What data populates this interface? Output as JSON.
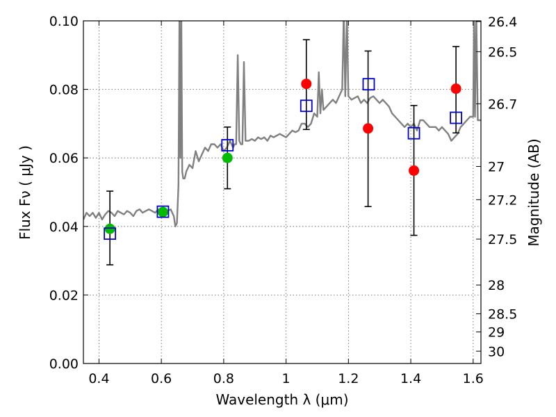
{
  "chart_data": {
    "type": "scatter",
    "xlabel": "Wavelength  λ (μm)",
    "ylabel": "Flux  Fν  ( μJy )",
    "ylabel_right": "Magnitude (AB)",
    "xlim": [
      0.35,
      1.625
    ],
    "ylim": [
      0.0,
      0.1
    ],
    "grid": true,
    "x_ticks": [
      0.4,
      0.6,
      0.8,
      1.0,
      1.2,
      1.4,
      1.6
    ],
    "x_tick_labels": [
      "0.4",
      "0.6",
      "0.8",
      "1",
      "1.2",
      "1.4",
      "1.6"
    ],
    "y_ticks": [
      0.0,
      0.02,
      0.04,
      0.06,
      0.08,
      0.1
    ],
    "y_tick_labels": [
      "0.00",
      "0.02",
      "0.04",
      "0.06",
      "0.08",
      "0.10"
    ],
    "right_ticks": [
      {
        "label": "26.4",
        "flux": 0.0998
      },
      {
        "label": "26.5",
        "flux": 0.091
      },
      {
        "label": "26.7",
        "flux": 0.0758
      },
      {
        "label": "27",
        "flux": 0.0575
      },
      {
        "label": "27.2",
        "flux": 0.0478
      },
      {
        "label": "27.5",
        "flux": 0.0363
      },
      {
        "label": "28",
        "flux": 0.0229
      },
      {
        "label": "28.5",
        "flux": 0.0145
      },
      {
        "label": "29",
        "flux": 0.0092
      },
      {
        "label": "30",
        "flux": 0.0036
      }
    ],
    "series": [
      {
        "marker": "open-square",
        "color": "#0000cc",
        "x": [
          0.435,
          0.605,
          0.812,
          1.065,
          1.265,
          1.41,
          1.545
        ],
        "y": [
          0.0379,
          0.0443,
          0.0637,
          0.0752,
          0.0815,
          0.0672,
          0.0717
        ]
      },
      {
        "marker": "filled-circle",
        "color": "#00bb00",
        "x": [
          0.435,
          0.605,
          0.812
        ],
        "y": [
          0.0393,
          0.0442,
          0.06
        ],
        "yerr_low": [
          0.0288,
          0.0442,
          0.051
        ],
        "yerr_high": [
          0.0503,
          0.0442,
          0.069
        ]
      },
      {
        "marker": "filled-circle",
        "color": "#ff0000",
        "x": [
          1.065,
          1.263,
          1.41,
          1.545
        ],
        "y": [
          0.0816,
          0.0686,
          0.0563,
          0.0802
        ],
        "yerr_low": [
          0.0683,
          0.0458,
          0.0374,
          0.0673
        ],
        "yerr_high": [
          0.0945,
          0.0912,
          0.0753,
          0.0925
        ]
      }
    ],
    "spectrum": {
      "color": "#808080",
      "x": [
        0.35,
        0.36,
        0.37,
        0.38,
        0.39,
        0.4,
        0.41,
        0.42,
        0.43,
        0.44,
        0.45,
        0.46,
        0.47,
        0.48,
        0.49,
        0.5,
        0.51,
        0.52,
        0.53,
        0.54,
        0.55,
        0.56,
        0.57,
        0.58,
        0.59,
        0.6,
        0.61,
        0.62,
        0.63,
        0.64,
        0.645,
        0.65,
        0.655,
        0.658,
        0.661,
        0.664,
        0.667,
        0.67,
        0.675,
        0.68,
        0.69,
        0.7,
        0.71,
        0.72,
        0.73,
        0.74,
        0.75,
        0.76,
        0.77,
        0.78,
        0.79,
        0.8,
        0.81,
        0.82,
        0.83,
        0.835,
        0.84,
        0.845,
        0.85,
        0.855,
        0.86,
        0.865,
        0.87,
        0.88,
        0.89,
        0.9,
        0.91,
        0.92,
        0.93,
        0.94,
        0.95,
        0.96,
        0.97,
        0.98,
        0.99,
        1.0,
        1.01,
        1.02,
        1.03,
        1.04,
        1.05,
        1.06,
        1.07,
        1.08,
        1.09,
        1.1,
        1.105,
        1.11,
        1.115,
        1.12,
        1.13,
        1.14,
        1.15,
        1.16,
        1.17,
        1.18,
        1.185,
        1.19,
        1.195,
        1.2,
        1.21,
        1.22,
        1.23,
        1.24,
        1.25,
        1.26,
        1.27,
        1.28,
        1.29,
        1.3,
        1.31,
        1.32,
        1.33,
        1.34,
        1.35,
        1.36,
        1.37,
        1.38,
        1.39,
        1.4,
        1.41,
        1.42,
        1.43,
        1.44,
        1.45,
        1.46,
        1.47,
        1.48,
        1.49,
        1.5,
        1.51,
        1.52,
        1.53,
        1.54,
        1.55,
        1.56,
        1.57,
        1.58,
        1.59,
        1.6,
        1.603,
        1.606,
        1.61,
        1.615,
        1.62,
        1.625
      ],
      "y": [
        0.042,
        0.044,
        0.043,
        0.044,
        0.0425,
        0.044,
        0.042,
        0.0435,
        0.0445,
        0.044,
        0.043,
        0.0445,
        0.044,
        0.0435,
        0.0445,
        0.044,
        0.043,
        0.0445,
        0.045,
        0.044,
        0.0445,
        0.045,
        0.0445,
        0.044,
        0.045,
        0.0445,
        0.044,
        0.0445,
        0.045,
        0.043,
        0.04,
        0.041,
        0.052,
        0.102,
        0.06,
        0.102,
        0.056,
        0.054,
        0.054,
        0.056,
        0.058,
        0.057,
        0.062,
        0.059,
        0.061,
        0.063,
        0.062,
        0.064,
        0.064,
        0.063,
        0.064,
        0.062,
        0.063,
        0.065,
        0.063,
        0.064,
        0.064,
        0.09,
        0.065,
        0.064,
        0.064,
        0.088,
        0.065,
        0.065,
        0.0655,
        0.065,
        0.066,
        0.0655,
        0.066,
        0.065,
        0.0665,
        0.066,
        0.0665,
        0.067,
        0.0665,
        0.066,
        0.067,
        0.068,
        0.0675,
        0.068,
        0.07,
        0.07,
        0.069,
        0.07,
        0.073,
        0.072,
        0.085,
        0.073,
        0.08,
        0.074,
        0.075,
        0.076,
        0.077,
        0.076,
        0.078,
        0.08,
        0.102,
        0.078,
        0.102,
        0.078,
        0.077,
        0.0775,
        0.078,
        0.076,
        0.077,
        0.076,
        0.0775,
        0.078,
        0.077,
        0.076,
        0.077,
        0.076,
        0.075,
        0.073,
        0.072,
        0.071,
        0.07,
        0.069,
        0.07,
        0.069,
        0.07,
        0.068,
        0.071,
        0.071,
        0.07,
        0.069,
        0.069,
        0.069,
        0.068,
        0.069,
        0.068,
        0.067,
        0.065,
        0.066,
        0.067,
        0.069,
        0.07,
        0.071,
        0.072,
        0.072,
        0.102,
        0.072,
        0.102,
        0.071,
        0.071,
        0.071
      ]
    }
  }
}
